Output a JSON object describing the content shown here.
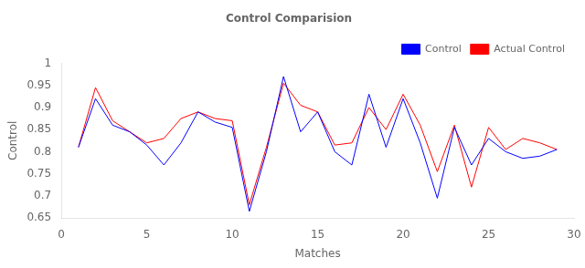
{
  "chart_data": {
    "type": "line",
    "title": "Control Comparision",
    "xlabel": "Matches",
    "ylabel": "Control",
    "x": [
      1,
      2,
      3,
      4,
      5,
      6,
      7,
      8,
      9,
      10,
      11,
      12,
      13,
      14,
      15,
      16,
      17,
      18,
      19,
      20,
      21,
      22,
      23,
      24,
      25,
      26,
      27,
      28,
      29
    ],
    "series": [
      {
        "name": "Control",
        "color": "blue",
        "values": [
          0.81,
          0.92,
          0.86,
          0.845,
          0.815,
          0.77,
          0.82,
          0.89,
          0.867,
          0.855,
          0.665,
          0.8,
          0.97,
          0.845,
          0.89,
          0.8,
          0.77,
          0.93,
          0.81,
          0.92,
          0.82,
          0.695,
          0.855,
          0.77,
          0.83,
          0.8,
          0.785,
          0.79,
          0.805
        ]
      },
      {
        "name": "Actual Control",
        "color": "red",
        "values": [
          0.81,
          0.945,
          0.87,
          0.845,
          0.82,
          0.83,
          0.875,
          0.89,
          0.875,
          0.87,
          0.68,
          0.81,
          0.955,
          0.905,
          0.89,
          0.815,
          0.82,
          0.9,
          0.85,
          0.93,
          0.86,
          0.755,
          0.86,
          0.72,
          0.855,
          0.805,
          0.83,
          0.82,
          0.805
        ]
      }
    ],
    "xlim": [
      0,
      30
    ],
    "xticks": [
      0,
      5,
      10,
      15,
      20,
      25,
      30
    ],
    "ylim": [
      0.65,
      1.0
    ],
    "yticks": [
      0.65,
      0.7,
      0.75,
      0.8,
      0.85,
      0.9,
      0.95,
      1.0
    ],
    "grid": false,
    "legend": "upper right"
  }
}
